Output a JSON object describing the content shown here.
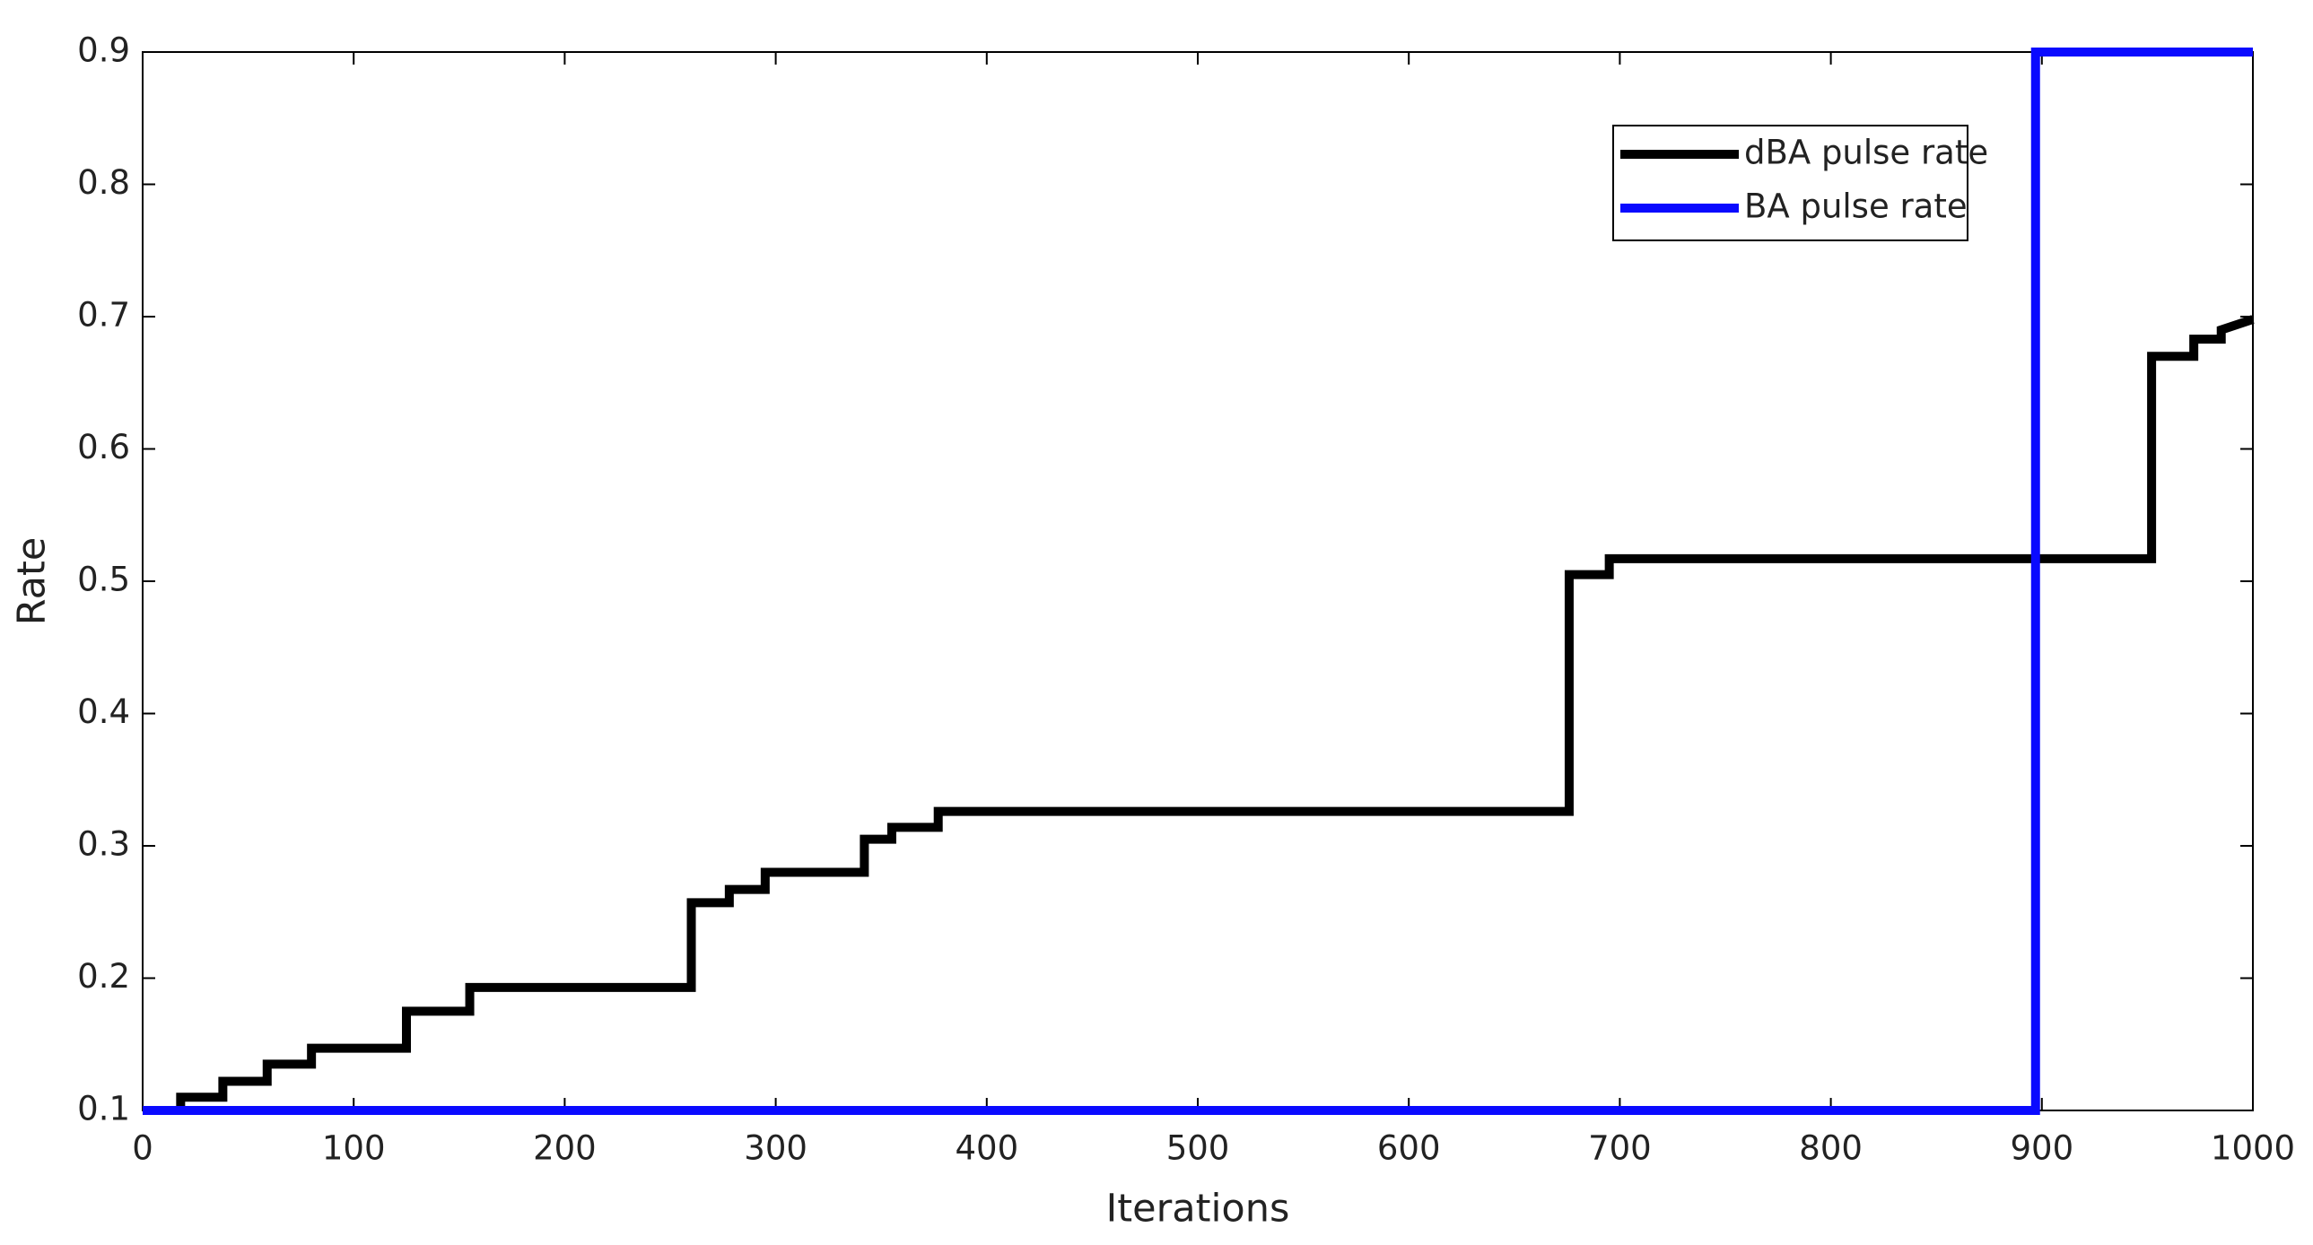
{
  "chart_data": {
    "type": "line",
    "xlabel": "Iterations",
    "ylabel": "Rate",
    "xlim": [
      0,
      1000
    ],
    "ylim": [
      0.1,
      0.9
    ],
    "xticks": [
      0,
      100,
      200,
      300,
      400,
      500,
      600,
      700,
      800,
      900,
      1000
    ],
    "yticks": [
      0.1,
      0.2,
      0.3,
      0.4,
      0.5,
      0.6,
      0.7,
      0.8,
      0.9
    ],
    "grid": false,
    "legend": "upper right",
    "series": [
      {
        "name": "dBA pulse rate",
        "color": "#000000",
        "x": [
          0,
          18,
          18,
          38,
          38,
          59,
          59,
          80,
          80,
          125,
          125,
          155,
          155,
          260,
          260,
          278,
          278,
          295,
          295,
          342,
          342,
          355,
          355,
          377,
          377,
          676,
          676,
          695,
          695,
          952,
          952,
          972,
          972,
          985,
          985,
          1000
        ],
        "values": [
          0.1,
          0.1,
          0.11,
          0.11,
          0.122,
          0.122,
          0.135,
          0.135,
          0.147,
          0.147,
          0.175,
          0.175,
          0.193,
          0.193,
          0.257,
          0.257,
          0.267,
          0.267,
          0.28,
          0.28,
          0.305,
          0.305,
          0.314,
          0.314,
          0.326,
          0.326,
          0.505,
          0.505,
          0.517,
          0.517,
          0.67,
          0.67,
          0.683,
          0.683,
          0.69,
          0.698
        ]
      },
      {
        "name": "BA pulse rate",
        "color": "#0a0aff",
        "x": [
          0,
          897,
          897,
          1000
        ],
        "values": [
          0.1,
          0.1,
          0.9,
          0.9
        ]
      }
    ]
  }
}
